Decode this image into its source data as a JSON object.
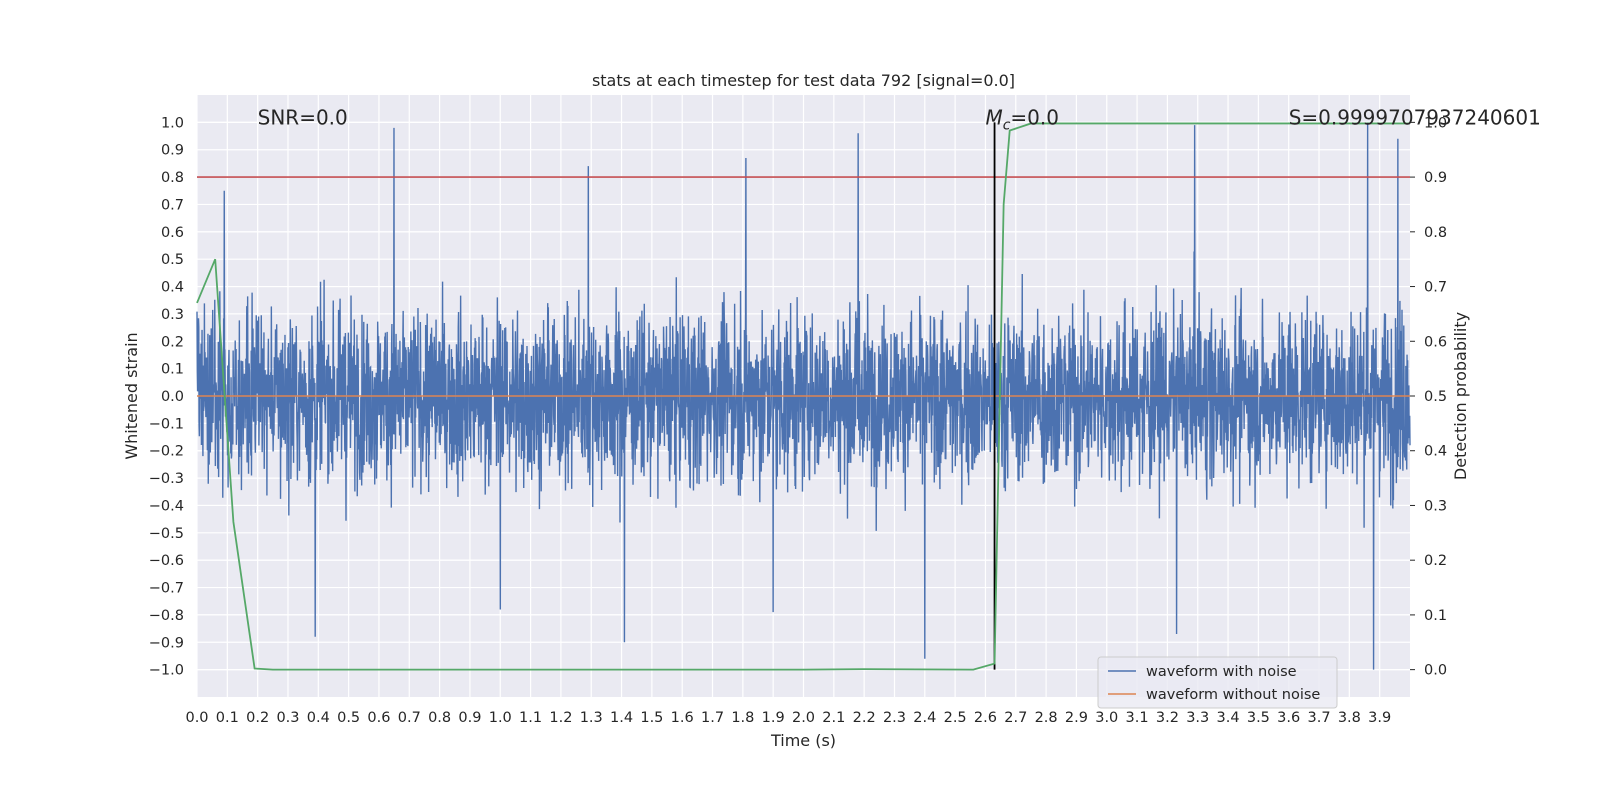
{
  "chart_data": {
    "type": "line",
    "title": "stats at each timestep for test data 792 [signal=0.0]",
    "xlabel": "Time (s)",
    "ylabel": "Whitened strain",
    "y2label": "Detection probability",
    "xlim": [
      0.0,
      4.0
    ],
    "ylim": [
      -1.1,
      1.1
    ],
    "y2lim": [
      -0.05,
      1.05
    ],
    "xticks": [
      "0.0",
      "0.1",
      "0.2",
      "0.3",
      "0.4",
      "0.5",
      "0.6",
      "0.7",
      "0.8",
      "0.9",
      "1.0",
      "1.1",
      "1.2",
      "1.3",
      "1.4",
      "1.5",
      "1.6",
      "1.7",
      "1.8",
      "1.9",
      "2.0",
      "2.1",
      "2.2",
      "2.3",
      "2.4",
      "2.5",
      "2.6",
      "2.7",
      "2.8",
      "2.9",
      "3.0",
      "3.1",
      "3.2",
      "3.3",
      "3.4",
      "3.5",
      "3.6",
      "3.7",
      "3.8",
      "3.9"
    ],
    "yticks": [
      "1.0",
      "0.9",
      "0.8",
      "0.7",
      "0.6",
      "0.5",
      "0.4",
      "0.3",
      "0.2",
      "0.1",
      "0.0",
      "−0.1",
      "−0.2",
      "−0.3",
      "−0.4",
      "−0.5",
      "−0.6",
      "−0.7",
      "−0.8",
      "−0.9",
      "−1.0"
    ],
    "y2ticks": [
      "0.0",
      "0.1",
      "0.2",
      "0.3",
      "0.4",
      "0.5",
      "0.6",
      "0.7",
      "0.8",
      "0.9",
      "1.0"
    ],
    "grid": true,
    "legend_position": "lower-right",
    "annotations": {
      "snr": "SNR=0.0",
      "mc_symbol": "M",
      "mc_sub": "c",
      "mc_value": "=0.0",
      "score": "S=0.9999707937240601"
    },
    "series": [
      {
        "name": "waveform with noise",
        "color": "#4c72b0",
        "axis": "left",
        "kind": "noise",
        "range": [
          -1.0,
          1.0
        ],
        "peaks": [
          {
            "x": 0.65,
            "y": 0.98
          },
          {
            "x": 1.29,
            "y": 0.84
          },
          {
            "x": 1.81,
            "y": 0.87
          },
          {
            "x": 2.18,
            "y": 0.96
          },
          {
            "x": 3.29,
            "y": 0.99
          },
          {
            "x": 3.86,
            "y": 1.0
          },
          {
            "x": 3.96,
            "y": 0.94
          },
          {
            "x": 0.09,
            "y": 0.75
          },
          {
            "x": 2.4,
            "y": -0.96
          },
          {
            "x": 3.88,
            "y": -1.0
          },
          {
            "x": 1.41,
            "y": -0.9
          },
          {
            "x": 0.39,
            "y": -0.88
          },
          {
            "x": 3.23,
            "y": -0.87
          },
          {
            "x": 1.0,
            "y": -0.78
          },
          {
            "x": 1.9,
            "y": -0.79
          }
        ]
      },
      {
        "name": "waveform without noise",
        "color": "#dd8452",
        "axis": "left",
        "values": [
          [
            0.0,
            0.0
          ],
          [
            4.0,
            0.0
          ]
        ]
      },
      {
        "name": "detection probability",
        "color": "#55a868",
        "axis": "right",
        "values": [
          [
            0.0,
            0.67
          ],
          [
            0.06,
            0.75
          ],
          [
            0.12,
            0.27
          ],
          [
            0.19,
            0.002
          ],
          [
            0.25,
            0.0
          ],
          [
            1.0,
            0.0
          ],
          [
            2.0,
            0.0
          ],
          [
            2.2,
            0.001
          ],
          [
            2.56,
            0.0
          ],
          [
            2.63,
            0.011
          ],
          [
            2.66,
            0.85
          ],
          [
            2.68,
            0.985
          ],
          [
            2.75,
            0.998
          ],
          [
            3.0,
            0.998
          ],
          [
            3.5,
            0.998
          ],
          [
            4.0,
            0.998
          ]
        ]
      }
    ],
    "reference_lines": [
      {
        "kind": "horizontal",
        "axis": "right",
        "value": 0.9,
        "color": "#c44e52"
      },
      {
        "kind": "vertical",
        "value": 2.63,
        "color": "#000000",
        "ymin": -1.0,
        "ymax": 1.0
      }
    ]
  }
}
